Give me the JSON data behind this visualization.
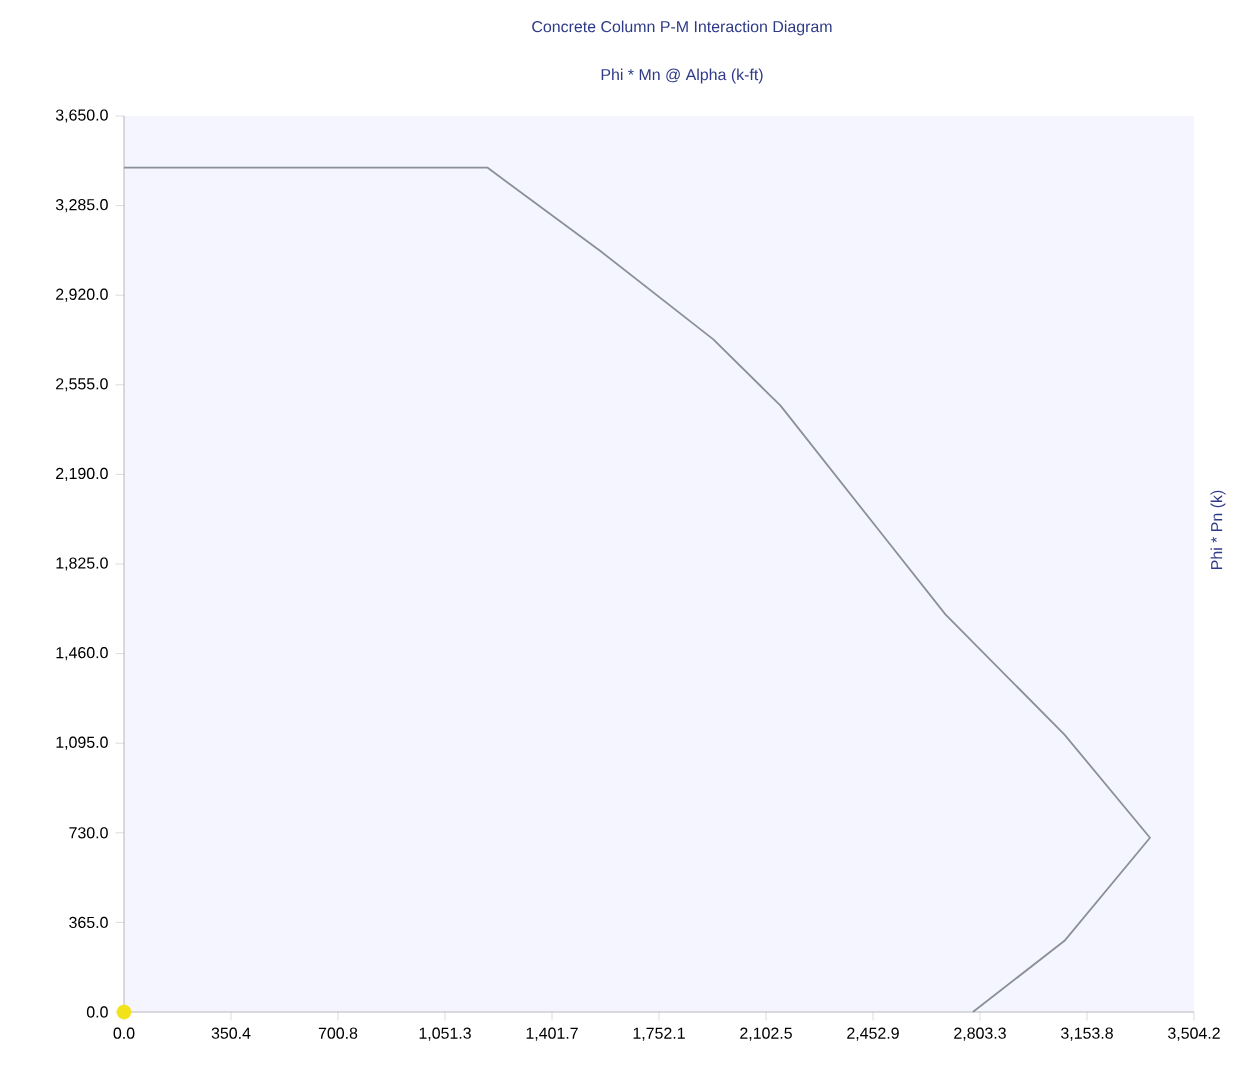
{
  "chart_data": {
    "type": "line",
    "title": "Concrete Column P-M Interaction Diagram",
    "xlabel": "Phi * Mn @ Alpha   (k-ft)",
    "ylabel": "Phi * Pn   (k)",
    "xlim": [
      0,
      3504.2
    ],
    "ylim": [
      0,
      3650
    ],
    "xticks": [
      {
        "value": 0,
        "label": "0.0"
      },
      {
        "value": 350.4,
        "label": "350.4"
      },
      {
        "value": 700.8,
        "label": "700.8"
      },
      {
        "value": 1051.3,
        "label": "1,051.3"
      },
      {
        "value": 1401.7,
        "label": "1,401.7"
      },
      {
        "value": 1752.1,
        "label": "1,752.1"
      },
      {
        "value": 2102.5,
        "label": "2,102.5"
      },
      {
        "value": 2452.9,
        "label": "2,452.9"
      },
      {
        "value": 2803.3,
        "label": "2,803.3"
      },
      {
        "value": 3153.8,
        "label": "3,153.8"
      },
      {
        "value": 3504.2,
        "label": "3,504.2"
      }
    ],
    "yticks": [
      {
        "value": 0,
        "label": "0.0"
      },
      {
        "value": 365,
        "label": "365.0"
      },
      {
        "value": 730,
        "label": "730.0"
      },
      {
        "value": 1095,
        "label": "1,095.0"
      },
      {
        "value": 1460,
        "label": "1,460.0"
      },
      {
        "value": 1825,
        "label": "1,825.0"
      },
      {
        "value": 2190,
        "label": "2,190.0"
      },
      {
        "value": 2555,
        "label": "2,555.0"
      },
      {
        "value": 2920,
        "label": "2,920.0"
      },
      {
        "value": 3285,
        "label": "3,285.0"
      },
      {
        "value": 3650,
        "label": "3,650.0"
      }
    ],
    "marker": "none",
    "line_style": "solid",
    "series": [
      {
        "color": "#8a9098",
        "x": [
          0,
          1190,
          1560,
          1930,
          2150,
          2480,
          2690,
          3080,
          3360,
          3080,
          2780
        ],
        "values": [
          3440,
          3440,
          3100,
          2740,
          2470,
          1950,
          1620,
          1130,
          710,
          290,
          0
        ]
      },
      {
        "type": "scatter",
        "marker": "circle",
        "color": "#f2e21a",
        "x": [
          0
        ],
        "values": [
          0
        ]
      }
    ]
  }
}
